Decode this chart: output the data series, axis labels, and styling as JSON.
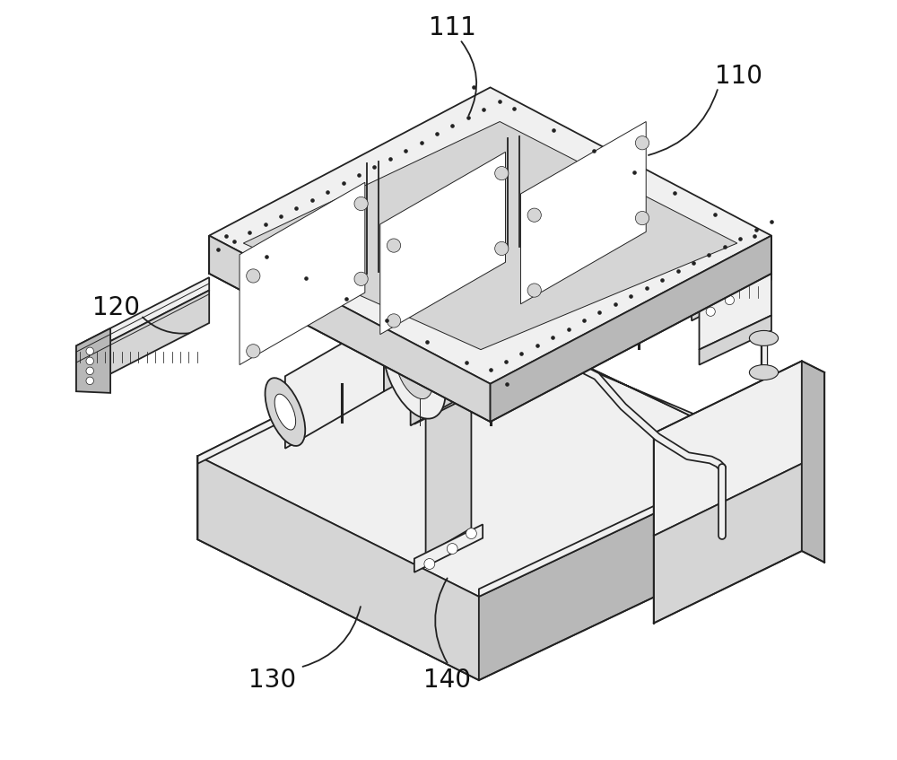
{
  "bg_color": "#ffffff",
  "edge_color": "#222222",
  "fill_light": "#f0f0f0",
  "fill_mid": "#d5d5d5",
  "fill_dark": "#b8b8b8",
  "fill_white": "#ffffff",
  "label_110": "110",
  "label_111": "111",
  "label_120": "120",
  "label_130": "130",
  "label_140": "140",
  "label_fontsize": 20,
  "lw_main": 1.3,
  "lw_thin": 0.7
}
